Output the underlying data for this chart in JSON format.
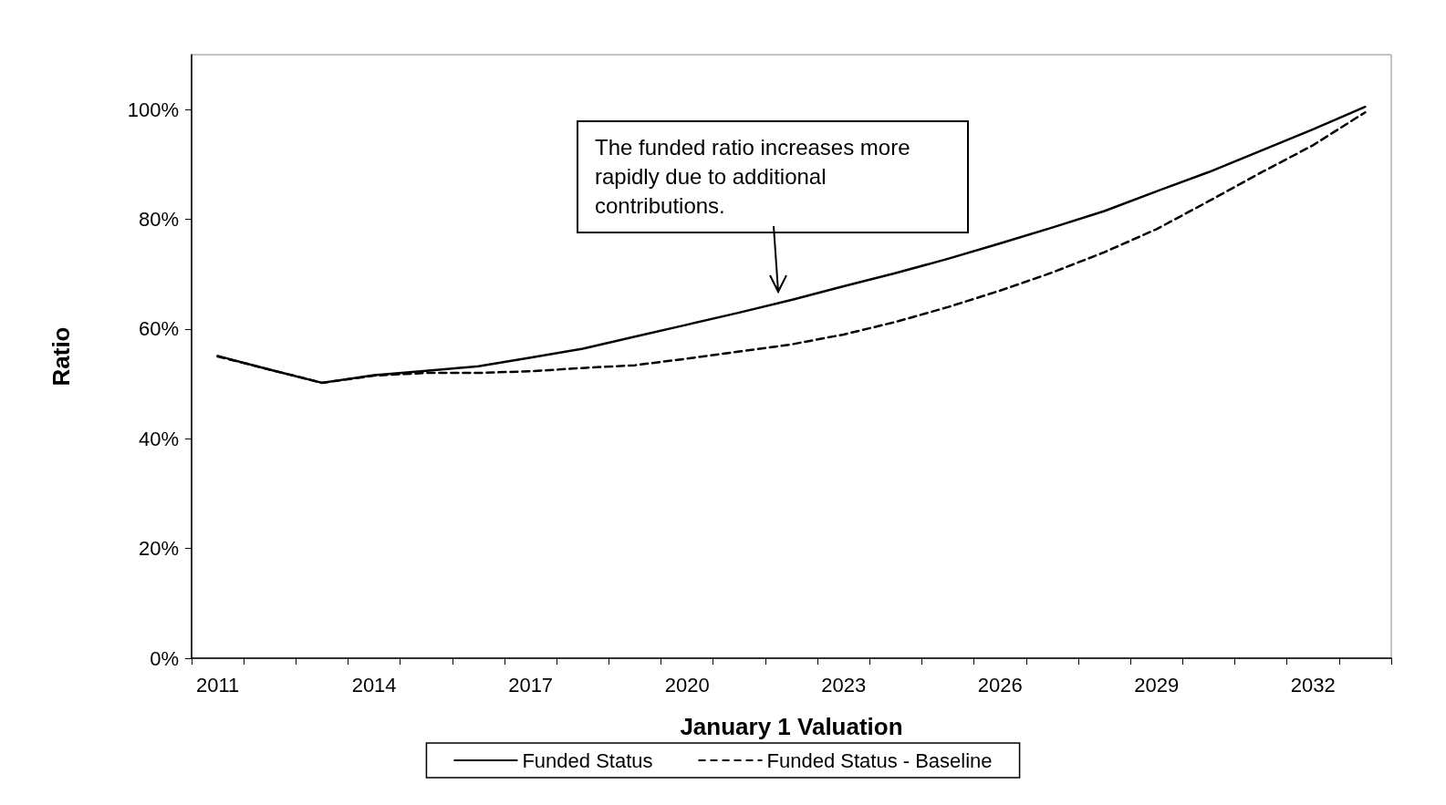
{
  "chart_data": {
    "type": "line",
    "xlabel": "January 1 Valuation",
    "ylabel": "Ratio",
    "categories": [
      "2011",
      null,
      null,
      "2014",
      null,
      null,
      "2017",
      null,
      null,
      "2020",
      null,
      null,
      "2023",
      null,
      null,
      "2026",
      null,
      null,
      "2029",
      null,
      null,
      "2032",
      null
    ],
    "series": [
      {
        "name": "Funded Status",
        "color": "#000000",
        "line_style": "solid",
        "values": [
          55.1,
          52.6,
          50.2,
          51.6,
          52.4,
          53.2,
          54.8,
          56.4,
          58.6,
          60.8,
          63.0,
          65.3,
          67.8,
          70.2,
          72.8,
          75.6,
          78.5,
          81.5,
          85.1,
          88.6,
          92.5,
          96.4,
          100.5
        ]
      },
      {
        "name": "Funded Status - Baseline",
        "color": "#000000",
        "line_style": "dashed",
        "values": [
          55.0,
          52.6,
          50.2,
          51.5,
          52.0,
          52.0,
          52.3,
          52.9,
          53.4,
          54.6,
          55.9,
          57.2,
          59.0,
          61.3,
          64.0,
          67.0,
          70.3,
          74.0,
          78.2,
          83.3,
          88.5,
          93.5,
          99.5
        ]
      }
    ],
    "ylim": [
      0,
      110
    ],
    "yticks": [
      {
        "value": 0,
        "label": "0%"
      },
      {
        "value": 20,
        "label": "20%"
      },
      {
        "value": 40,
        "label": "40%"
      },
      {
        "value": 60,
        "label": "60%"
      },
      {
        "value": 80,
        "label": "80%"
      },
      {
        "value": 100,
        "label": "100%"
      }
    ],
    "annotations": [
      "The funded ratio increases more rapidly due to additional contributions."
    ],
    "legend": "bottom",
    "marker": "none",
    "grid": false
  }
}
